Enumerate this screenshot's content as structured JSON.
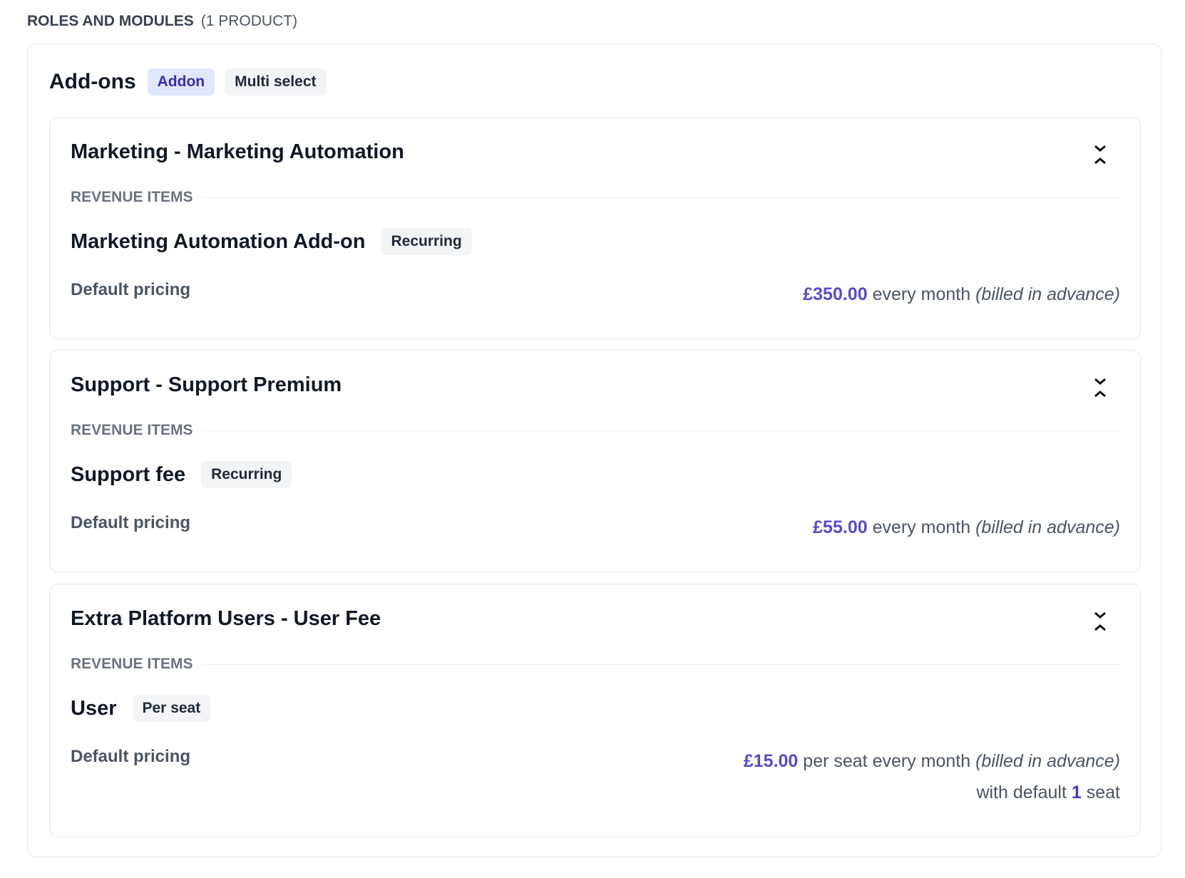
{
  "section": {
    "title": "ROLES AND MODULES",
    "count": "(1 PRODUCT)"
  },
  "group": {
    "title": "Add-ons",
    "badges": [
      "Addon",
      "Multi select"
    ]
  },
  "cards": [
    {
      "title": "Marketing - Marketing Automation",
      "revenue_label": "REVENUE ITEMS",
      "item": "Marketing Automation Add-on",
      "item_badge": "Recurring",
      "pricing_label": "Default pricing",
      "amount": "£350.00",
      "period": "every month",
      "billing": "(billed in advance)"
    },
    {
      "title": "Support - Support Premium",
      "revenue_label": "REVENUE ITEMS",
      "item": "Support fee",
      "item_badge": "Recurring",
      "pricing_label": "Default pricing",
      "amount": "£55.00",
      "period": "every month",
      "billing": "(billed in advance)"
    },
    {
      "title": "Extra Platform Users - User Fee",
      "revenue_label": "REVENUE ITEMS",
      "item": "User",
      "item_badge": "Per seat",
      "pricing_label": "Default pricing",
      "amount": "£15.00",
      "period": "per seat every month",
      "billing": "(billed in advance)",
      "seats_prefix": "with default",
      "seats": "1",
      "seats_suffix": "seat"
    }
  ],
  "icons": {
    "toggle": "chevron-collapse-icon"
  },
  "colors": {
    "accent": "#4338ca",
    "addon_badge_bg": "#e0e7ff"
  }
}
